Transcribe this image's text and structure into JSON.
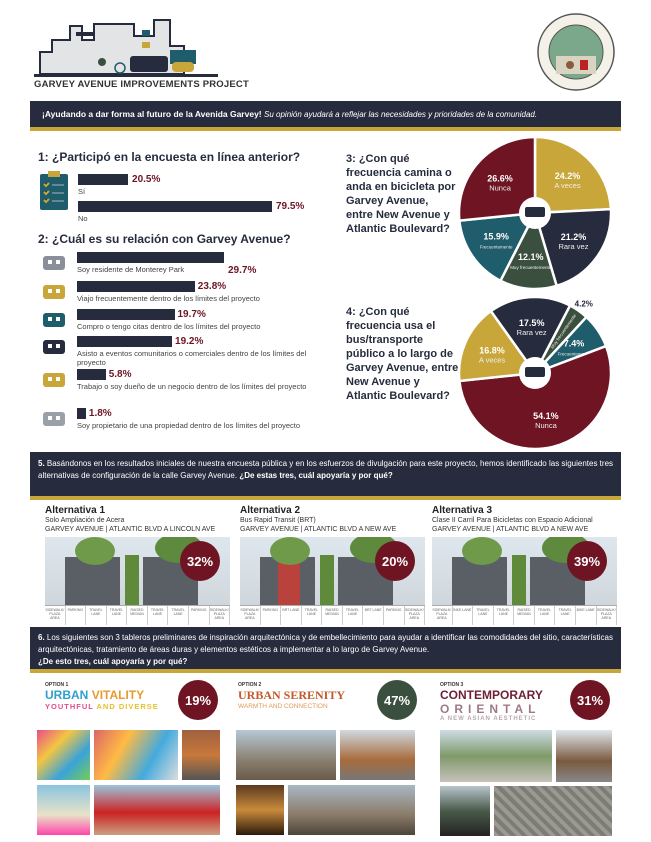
{
  "header": {
    "project_title": "GARVEY AVENUE IMPROVEMENTS PROJECT",
    "seal_text": "CITY OF MONTEREY PARK CALIFORNIA"
  },
  "banner": {
    "bold": "¡Ayudando a dar forma al futuro de la Avenida Garvey!",
    "italic": "Su opinión ayudará a reflejar las necesidades y prioridades de la comunidad."
  },
  "colors": {
    "maroon": "#6e1423",
    "gold": "#c9a63a",
    "navy": "#262c3e",
    "green": "#3b4f3f",
    "teal": "#1f5c6c"
  },
  "q1": {
    "title": "1: ¿Participó en la encuesta en línea anterior?",
    "icon": "clipboard-icon",
    "items": [
      {
        "label": "Sí",
        "value": 20.5,
        "display": "20.5%"
      },
      {
        "label": "No",
        "value": 79.5,
        "display": "79.5%"
      }
    ]
  },
  "q2": {
    "title": "2: ¿Cuál es su relación con Garvey Avenue?",
    "items": [
      {
        "label": "Soy residente de Monterey Park",
        "value": 29.7,
        "display": "29.7%",
        "icon": "house-icon"
      },
      {
        "label": "Viajo frecuentemente dentro de los límites del proyecto",
        "value": 23.8,
        "display": "23.8%",
        "icon": "car-icon"
      },
      {
        "label": "Compro o tengo citas dentro de los límites del proyecto",
        "value": 19.7,
        "display": "19.7%",
        "icon": "shopping-bag-icon"
      },
      {
        "label": "Asisto a eventos comunitarios o comerciales dentro de los límites del proyecto",
        "value": 19.2,
        "display": "19.2%",
        "icon": "event-booth-icon"
      },
      {
        "label": "Trabajo o soy dueño de un negocio dentro de los límites del proyecto",
        "value": 5.8,
        "display": "5.8%",
        "icon": "briefcase-icon"
      },
      {
        "label": "Soy propietario de una propiedad dentro de los límites del proyecto",
        "value": 1.8,
        "display": "1.8%",
        "icon": "keys-icon"
      }
    ]
  },
  "q3": {
    "title": "3: ¿Con qué frecuencia camina o anda en bicicleta por Garvey Avenue, entre New Avenue y Atlantic Boulevard?",
    "icon": "pedestrian-bike-icon",
    "slices": [
      {
        "label": "A veces",
        "value": 24.2,
        "display": "24.2%",
        "color": "#c9a63a"
      },
      {
        "label": "Rara vez",
        "value": 21.2,
        "display": "21.2%",
        "color": "#262c3e"
      },
      {
        "label": "Muy frecuentemente",
        "value": 12.1,
        "display": "12.1%",
        "color": "#3b4f3f"
      },
      {
        "label": "Frecuentemente",
        "value": 15.9,
        "display": "15.9%",
        "color": "#1f5c6c"
      },
      {
        "label": "Nunca",
        "value": 26.6,
        "display": "26.6%",
        "color": "#6e1423"
      }
    ]
  },
  "q4": {
    "title": "4: ¿Con qué frecuencia usa el bus/transporte público a lo largo de Garvey Avenue, entre New Avenue y Atlantic Boulevard?",
    "icon": "bus-icon",
    "slices": [
      {
        "label": "Rara vez",
        "value": 17.5,
        "display": "17.5%",
        "color": "#262c3e"
      },
      {
        "label": "Muy frecuentemente",
        "value": 4.2,
        "display": "4.2%",
        "color": "#3b4f3f"
      },
      {
        "label": "Frecuentemente",
        "value": 7.4,
        "display": "7.4%",
        "color": "#1f5c6c"
      },
      {
        "label": "Nunca",
        "value": 54.1,
        "display": "54.1%",
        "color": "#6e1423"
      },
      {
        "label": "A veces",
        "value": 16.8,
        "display": "16.8%",
        "color": "#c9a63a"
      }
    ]
  },
  "q5": {
    "num": "5.",
    "text": " Basándonos en los resultados iniciales de nuestra encuesta pública y en los esfuerzos de divulgación para este proyecto, hemos identificado las siguientes tres alternativas de configuración de la calle Garvey Avenue. ",
    "bold": "¿De estas tres, cuál apoyaría y por qué?",
    "alternatives": [
      {
        "title": "Alternativa 1",
        "subtitle": "Solo Ampliación de Acera",
        "location": "GARVEY AVENUE | ATLANTIC BLVD A LINCOLN AVE",
        "percent": "32%",
        "color": "#6e1423",
        "lanes": [
          "SIDEWALK/ PLAZA AREA",
          "PARKING",
          "TRAVEL LANE",
          "TRAVEL LANE",
          "RAISED MEDIAN",
          "TRAVEL LANE",
          "TRAVEL LANE",
          "PARKING",
          "SIDEWALK/ PLAZA AREA"
        ]
      },
      {
        "title": "Alternativa 2",
        "subtitle": "Bus Rapid Transit (BRT)",
        "location": "GARVEY AVENUE | ATLANTIC BLVD A NEW AVE",
        "percent": "20%",
        "color": "#6e1423",
        "lanes": [
          "SIDEWALK/ PLAZA AREA",
          "PARKING",
          "BRT LANE",
          "TRAVEL LANE",
          "RAISED MEDIAN",
          "TRAVEL LANE",
          "BRT LANE",
          "PARKING",
          "SIDEWALK/ PLAZA AREA"
        ]
      },
      {
        "title": "Alternativa 3",
        "subtitle": "Clase II Carril Para Bicicletas con Espacio Adicional",
        "location": "GARVEY AVENUE | ATLANTIC BLVD A NEW AVE",
        "percent": "39%",
        "color": "#6e1423",
        "lanes": [
          "SIDEWALK/ PLAZA AREA",
          "BIKE LANE",
          "TRAVEL LANE",
          "TRAVEL LANE",
          "RAISED MEDIAN",
          "TRAVEL LANE",
          "TRAVEL LANE",
          "BIKE LANE",
          "SIDEWALK/ PLAZA AREA"
        ]
      }
    ]
  },
  "q6": {
    "num": "6.",
    "text": " Los siguientes son 3 tableros preliminares de inspiración arquitectónica y de embellecimiento para ayudar a identificar las comodidades del sitio, características arquitectónicas, tratamiento de áreas duras y elementos estéticos a implementar a lo largo de Garvey Avenue.",
    "bold": "¿De esto tres, cuál apoyaría y por qué?",
    "options": [
      {
        "option": "OPTION 1",
        "title_a": "URBAN",
        "title_b": "VITALITY",
        "sub_a": "YOUTHFUL",
        "sub_b": "AND DIVERSE",
        "percent": "19%",
        "color": "#6e1423"
      },
      {
        "option": "OPTION 2",
        "title_a": "URBAN SERENITY",
        "sub_a": "WARMTH AND CONNECTION",
        "percent": "47%",
        "color": "#3b4f3f"
      },
      {
        "option": "OPTION 3",
        "title_a": "CONTEMPORARY",
        "title_b": "ORIENTAL",
        "sub_a": "A NEW ASIAN AESTHETIC",
        "percent": "31%",
        "color": "#6e1423"
      }
    ]
  }
}
